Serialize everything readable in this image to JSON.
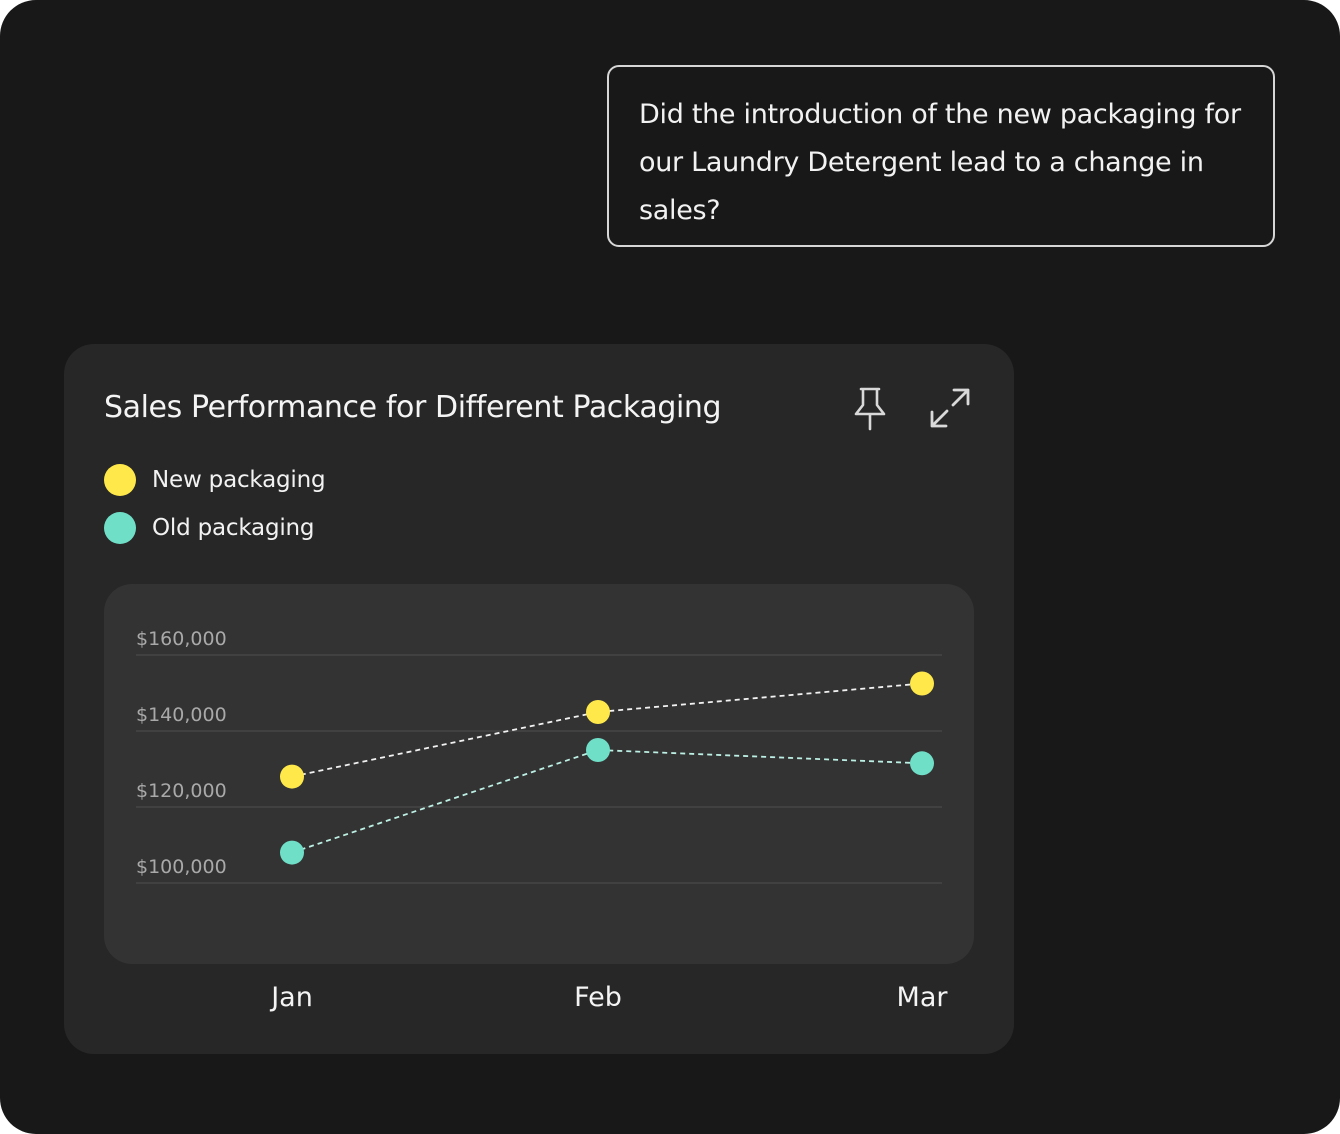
{
  "question": {
    "text": "Did the introduction of the new packaging for our Laundry Detergent lead to a change in sales?"
  },
  "card": {
    "title": "Sales Performance for Different Packaging",
    "pin_icon": "pin-icon",
    "expand_icon": "expand-icon"
  },
  "colors": {
    "background": "#181818",
    "card": "#272727",
    "plot_panel": "#333333",
    "new_packaging": "#ffe94a",
    "old_packaging": "#6fdfc8",
    "grid": "#4a4a4a",
    "tick_text": "#a9a9a9"
  },
  "legend": [
    {
      "label": "New packaging",
      "color": "#ffe94a"
    },
    {
      "label": "Old packaging",
      "color": "#6fdfc8"
    }
  ],
  "chart_data": {
    "type": "line",
    "title": "Sales Performance for Different Packaging",
    "xlabel": "",
    "ylabel": "",
    "categories": [
      "Jan",
      "Feb",
      "Mar"
    ],
    "y_ticks": [
      "$160,000",
      "$140,000",
      "$120,000",
      "$100,000"
    ],
    "y_tick_values": [
      160000,
      140000,
      120000,
      100000
    ],
    "ylim": [
      100000,
      160000
    ],
    "grid": true,
    "line_style": "dashed",
    "legend_position": "top-left",
    "series": [
      {
        "name": "New packaging",
        "color": "#ffe94a",
        "values": [
          128000,
          145000,
          152500
        ]
      },
      {
        "name": "Old packaging",
        "color": "#6fdfc8",
        "values": [
          108000,
          135000,
          131500
        ]
      }
    ]
  }
}
